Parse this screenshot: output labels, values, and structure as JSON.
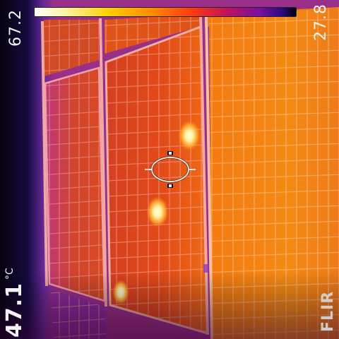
{
  "camera_overlay": {
    "scale_max": "67.2",
    "scale_min": "27.8",
    "spot_reading": "47.1",
    "spot_unit": "°C",
    "brand": "FLIR"
  },
  "icons": {
    "crosshair": "spot-meter-crosshair-icon",
    "brand_logo": "flir-logo-icon"
  },
  "colors": {
    "background": "#0a0008",
    "panel_hot": "#ff6a10",
    "panel_mid": "#d4361e",
    "frame": "#f0a090",
    "hotspot": "#fff6a0",
    "palette": [
      "#ffffff",
      "#fff3a0",
      "#ffd000",
      "#ff8a00",
      "#ff3a10",
      "#c01060",
      "#7a10a0",
      "#2a0880",
      "#000000"
    ]
  }
}
